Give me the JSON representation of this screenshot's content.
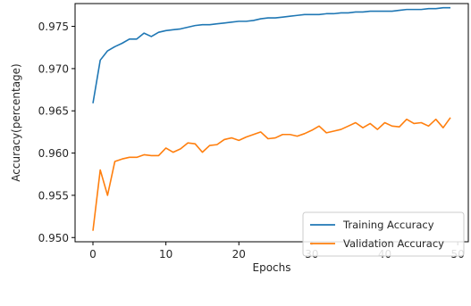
{
  "chart_data": {
    "type": "line",
    "title": "",
    "xlabel": "Epochs",
    "ylabel": "Accuracy(percentage)",
    "xlim": [
      -2.45,
      51.45
    ],
    "ylim": [
      0.9495,
      0.9777
    ],
    "xticks": [
      0,
      10,
      20,
      30,
      40,
      50
    ],
    "yticks": [
      0.95,
      0.955,
      0.96,
      0.965,
      0.97,
      0.975
    ],
    "ytick_labels": [
      "0.950",
      "0.955",
      "0.960",
      "0.965",
      "0.970",
      "0.975"
    ],
    "grid": false,
    "legend_position": "lower right",
    "series": [
      {
        "name": "Training Accuracy",
        "color": "#1f77b4",
        "x": [
          0,
          1,
          2,
          3,
          4,
          5,
          6,
          7,
          8,
          9,
          10,
          11,
          12,
          13,
          14,
          15,
          16,
          17,
          18,
          19,
          20,
          21,
          22,
          23,
          24,
          25,
          26,
          27,
          28,
          29,
          30,
          31,
          32,
          33,
          34,
          35,
          36,
          37,
          38,
          39,
          40,
          41,
          42,
          43,
          44,
          45,
          46,
          47,
          48,
          49
        ],
        "values": [
          0.9659,
          0.971,
          0.9721,
          0.9726,
          0.973,
          0.9735,
          0.9735,
          0.9742,
          0.9738,
          0.9743,
          0.9745,
          0.9746,
          0.9747,
          0.9749,
          0.9751,
          0.9752,
          0.9752,
          0.9753,
          0.9754,
          0.9755,
          0.9756,
          0.9756,
          0.9757,
          0.9759,
          0.976,
          0.976,
          0.9761,
          0.9762,
          0.9763,
          0.9764,
          0.9764,
          0.9764,
          0.9765,
          0.9765,
          0.9766,
          0.9766,
          0.9767,
          0.9767,
          0.9768,
          0.9768,
          0.9768,
          0.9768,
          0.9769,
          0.977,
          0.977,
          0.977,
          0.9771,
          0.9771,
          0.9772,
          0.9772
        ]
      },
      {
        "name": "Validation Accuracy",
        "color": "#ff7f0e",
        "x": [
          0,
          1,
          2,
          3,
          4,
          5,
          6,
          7,
          8,
          9,
          10,
          11,
          12,
          13,
          14,
          15,
          16,
          17,
          18,
          19,
          20,
          21,
          22,
          23,
          24,
          25,
          26,
          27,
          28,
          29,
          30,
          31,
          32,
          33,
          34,
          35,
          36,
          37,
          38,
          39,
          40,
          41,
          42,
          43,
          44,
          45,
          46,
          47,
          48,
          49
        ],
        "values": [
          0.9508,
          0.958,
          0.955,
          0.959,
          0.9593,
          0.9595,
          0.9595,
          0.9598,
          0.9597,
          0.9597,
          0.9606,
          0.9601,
          0.9605,
          0.9612,
          0.9611,
          0.9601,
          0.9609,
          0.961,
          0.9616,
          0.9618,
          0.9615,
          0.9619,
          0.9622,
          0.9625,
          0.9617,
          0.9618,
          0.9622,
          0.9622,
          0.962,
          0.9623,
          0.9627,
          0.9632,
          0.9624,
          0.9626,
          0.9628,
          0.9632,
          0.9636,
          0.963,
          0.9635,
          0.9628,
          0.9636,
          0.9632,
          0.9631,
          0.964,
          0.9635,
          0.9636,
          0.9632,
          0.964,
          0.963,
          0.9642
        ]
      }
    ]
  }
}
